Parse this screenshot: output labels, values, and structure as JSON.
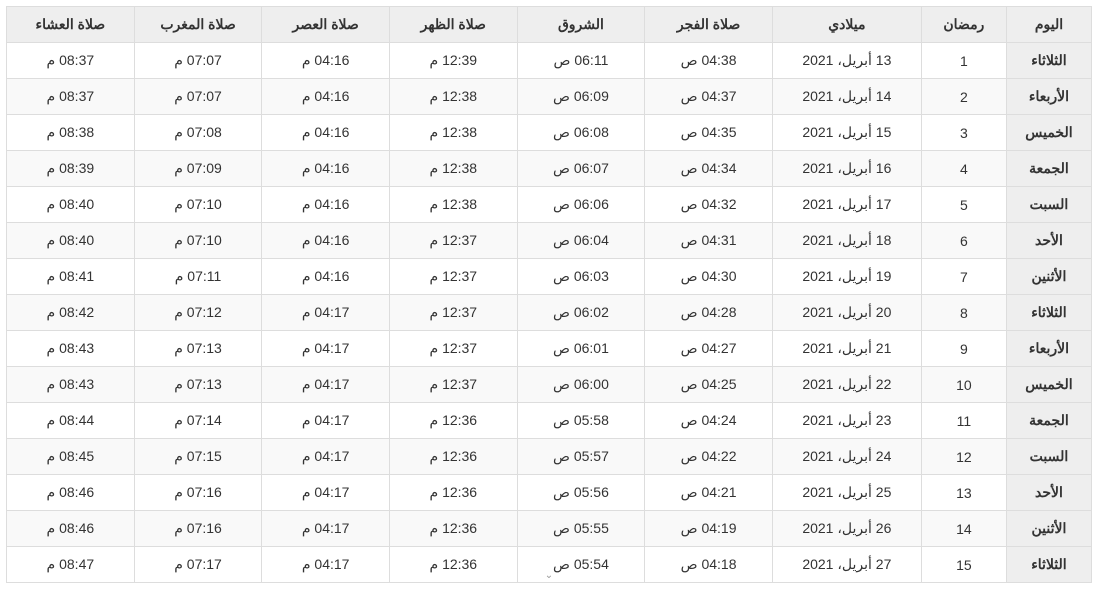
{
  "table": {
    "type": "table",
    "background_color": "#ffffff",
    "header_bg": "#eeeeee",
    "row_alt_bg": "#f9f9f9",
    "border_color": "#dddddd",
    "text_color": "#333333",
    "font_size_pt": 10,
    "column_widths_pct": [
      8,
      8,
      14,
      12,
      12,
      12,
      12,
      12,
      12
    ],
    "columns": [
      "اليوم",
      "رمضان",
      "ميلادي",
      "صلاة الفجر",
      "الشروق",
      "صلاة الظهر",
      "صلاة العصر",
      "صلاة المغرب",
      "صلاة العشاء"
    ],
    "rows": [
      [
        "الثلاثاء",
        "1",
        "13 أبريل، 2021",
        "04:38 ص",
        "06:11 ص",
        "12:39 م",
        "04:16 م",
        "07:07 م",
        "08:37 م"
      ],
      [
        "الأربعاء",
        "2",
        "14 أبريل، 2021",
        "04:37 ص",
        "06:09 ص",
        "12:38 م",
        "04:16 م",
        "07:07 م",
        "08:37 م"
      ],
      [
        "الخميس",
        "3",
        "15 أبريل، 2021",
        "04:35 ص",
        "06:08 ص",
        "12:38 م",
        "04:16 م",
        "07:08 م",
        "08:38 م"
      ],
      [
        "الجمعة",
        "4",
        "16 أبريل، 2021",
        "04:34 ص",
        "06:07 ص",
        "12:38 م",
        "04:16 م",
        "07:09 م",
        "08:39 م"
      ],
      [
        "السبت",
        "5",
        "17 أبريل، 2021",
        "04:32 ص",
        "06:06 ص",
        "12:38 م",
        "04:16 م",
        "07:10 م",
        "08:40 م"
      ],
      [
        "الأحد",
        "6",
        "18 أبريل، 2021",
        "04:31 ص",
        "06:04 ص",
        "12:37 م",
        "04:16 م",
        "07:10 م",
        "08:40 م"
      ],
      [
        "الأثنين",
        "7",
        "19 أبريل، 2021",
        "04:30 ص",
        "06:03 ص",
        "12:37 م",
        "04:16 م",
        "07:11 م",
        "08:41 م"
      ],
      [
        "الثلاثاء",
        "8",
        "20 أبريل، 2021",
        "04:28 ص",
        "06:02 ص",
        "12:37 م",
        "04:17 م",
        "07:12 م",
        "08:42 م"
      ],
      [
        "الأربعاء",
        "9",
        "21 أبريل، 2021",
        "04:27 ص",
        "06:01 ص",
        "12:37 م",
        "04:17 م",
        "07:13 م",
        "08:43 م"
      ],
      [
        "الخميس",
        "10",
        "22 أبريل، 2021",
        "04:25 ص",
        "06:00 ص",
        "12:37 م",
        "04:17 م",
        "07:13 م",
        "08:43 م"
      ],
      [
        "الجمعة",
        "11",
        "23 أبريل، 2021",
        "04:24 ص",
        "05:58 ص",
        "12:36 م",
        "04:17 م",
        "07:14 م",
        "08:44 م"
      ],
      [
        "السبت",
        "12",
        "24 أبريل، 2021",
        "04:22 ص",
        "05:57 ص",
        "12:36 م",
        "04:17 م",
        "07:15 م",
        "08:45 م"
      ],
      [
        "الأحد",
        "13",
        "25 أبريل، 2021",
        "04:21 ص",
        "05:56 ص",
        "12:36 م",
        "04:17 م",
        "07:16 م",
        "08:46 م"
      ],
      [
        "الأثنين",
        "14",
        "26 أبريل، 2021",
        "04:19 ص",
        "05:55 ص",
        "12:36 م",
        "04:17 م",
        "07:16 م",
        "08:46 م"
      ],
      [
        "الثلاثاء",
        "15",
        "27 أبريل، 2021",
        "04:18 ص",
        "05:54 ص",
        "12:36 م",
        "04:17 م",
        "07:17 م",
        "08:47 م"
      ]
    ]
  }
}
